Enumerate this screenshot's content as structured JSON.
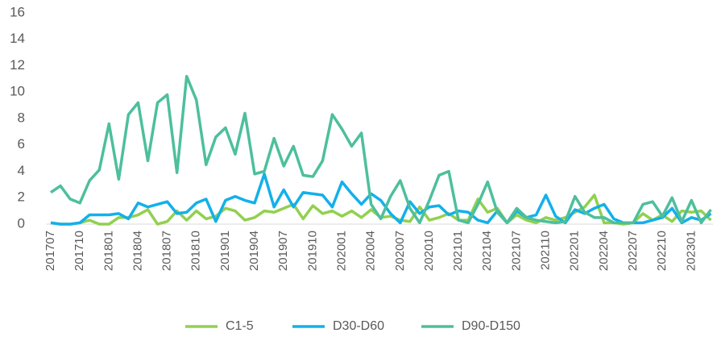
{
  "chart_data": {
    "type": "line",
    "categories": [
      "201707",
      null,
      null,
      "201710",
      null,
      null,
      "201801",
      null,
      null,
      "201804",
      null,
      null,
      "201807",
      null,
      null,
      "201810",
      null,
      null,
      "201901",
      null,
      null,
      "201904",
      null,
      null,
      "201907",
      null,
      null,
      "201910",
      null,
      null,
      "202001",
      null,
      null,
      "202004",
      null,
      null,
      "202007",
      null,
      null,
      "202010",
      null,
      null,
      "202101",
      null,
      null,
      "202104",
      null,
      null,
      "202107",
      null,
      null,
      "202110",
      null,
      null,
      "202201",
      null,
      null,
      "202204",
      null,
      null,
      "202207",
      null,
      null,
      "202210",
      null,
      null,
      "202301",
      null,
      null
    ],
    "series": [
      {
        "name": "C1-5",
        "color": "#92d050",
        "values": [
          0.1,
          0,
          0,
          0.1,
          0.3,
          0,
          0,
          0.5,
          0.5,
          0.7,
          1.1,
          0,
          0.2,
          1.0,
          0.3,
          1.0,
          0.4,
          0.6,
          1.2,
          1.0,
          0.3,
          0.5,
          1.0,
          0.9,
          1.2,
          1.5,
          0.4,
          1.4,
          0.8,
          1.0,
          0.6,
          1.0,
          0.5,
          1.1,
          0.5,
          0.6,
          0.3,
          0.2,
          1.3,
          0.3,
          0.5,
          0.8,
          0.3,
          0.3,
          1.9,
          0.9,
          1.2,
          0.1,
          0.7,
          0.3,
          0.1,
          0.5,
          0.3,
          0.5,
          0.9,
          1.3,
          2.2,
          0.1,
          0.1,
          0,
          0.1,
          0.8,
          0.3,
          0.7,
          0.2,
          1.0,
          0.9,
          1.0,
          0.3
        ]
      },
      {
        "name": "D30-D60",
        "color": "#13b0ea",
        "values": [
          0.1,
          0,
          0,
          0.1,
          0.7,
          0.7,
          0.7,
          0.8,
          0.4,
          1.6,
          1.3,
          1.5,
          1.7,
          0.8,
          0.9,
          1.6,
          1.9,
          0.2,
          1.8,
          2.1,
          1.8,
          1.6,
          3.8,
          1.3,
          2.6,
          1.3,
          2.4,
          2.3,
          2.2,
          1.3,
          3.2,
          2.3,
          1.5,
          2.3,
          1.8,
          0.8,
          0.1,
          1.7,
          0.8,
          1.3,
          1.4,
          0.7,
          1.0,
          0.9,
          0.3,
          0.1,
          1.0,
          0.1,
          1.0,
          0.5,
          0.7,
          2.2,
          0.6,
          0.1,
          1.1,
          0.8,
          1.2,
          1.5,
          0.4,
          0.1,
          0.1,
          0.1,
          0.3,
          0.5,
          1.2,
          0.1,
          0.5,
          0.3,
          0.8
        ]
      },
      {
        "name": "D90-D150",
        "color": "#4dbf9c",
        "values": [
          2.4,
          2.9,
          1.9,
          1.6,
          3.3,
          4.1,
          7.6,
          3.4,
          8.3,
          9.2,
          4.8,
          9.2,
          9.8,
          3.9,
          11.2,
          9.4,
          4.5,
          6.6,
          7.3,
          5.3,
          8.4,
          3.8,
          4.0,
          6.5,
          4.4,
          5.9,
          3.7,
          3.6,
          4.8,
          8.3,
          7.2,
          5.9,
          6.9,
          1.5,
          0.4,
          2.1,
          3.3,
          1.2,
          0.1,
          1.8,
          3.7,
          4.0,
          0.3,
          0.1,
          1.5,
          3.2,
          0.9,
          0.1,
          1.2,
          0.5,
          0.3,
          0.2,
          0.1,
          0.2,
          2.1,
          0.9,
          0.5,
          0.5,
          0.1,
          0.1,
          0.1,
          1.5,
          1.7,
          0.6,
          2.0,
          0.2,
          1.8,
          0.1,
          1.1
        ]
      }
    ],
    "ylim": [
      0,
      16
    ],
    "yticks": [
      0,
      2,
      4,
      6,
      8,
      10,
      12,
      14,
      16
    ],
    "grid": false,
    "legend": "bottom"
  }
}
